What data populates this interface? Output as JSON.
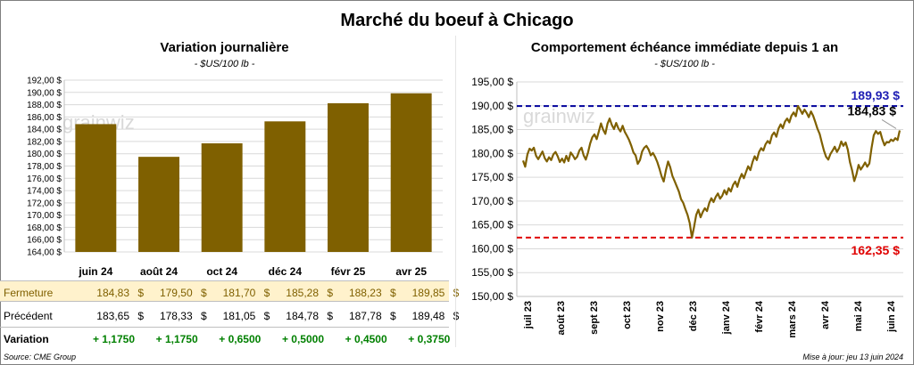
{
  "title": "Marché du boeuf à Chicago",
  "left_panel": {
    "subtitle": "Variation  journalière",
    "unit": "- $US/100 lb -"
  },
  "right_panel": {
    "subtitle": "Comportement  échéance immédiate depuis 1 an",
    "unit": "- $US/100 lb -"
  },
  "watermark": "grainwiz",
  "currency_symbol": "$",
  "table": {
    "rows": [
      {
        "label": "Fermeture",
        "values": [
          "184,83",
          "179,50",
          "181,70",
          "185,28",
          "188,23",
          "189,85"
        ]
      },
      {
        "label": "Précédent",
        "values": [
          "183,65",
          "178,33",
          "181,05",
          "184,78",
          "187,78",
          "189,48"
        ]
      },
      {
        "label": "Variation",
        "values": [
          "+ 1,1750",
          "+ 1,1750",
          "+ 0,6500",
          "+ 0,5000",
          "+ 0,4500",
          "+ 0,3750"
        ]
      }
    ]
  },
  "source": "Source: CME Group",
  "updated": "Mise à jour: jeu 13 juin 2024",
  "colors": {
    "bar": "#7f6000",
    "line": "#7f6000",
    "high_line": "#00009c",
    "low_line": "#e00000",
    "high_text": "#1f1fb4",
    "low_text": "#e00000",
    "fermeture_bg": "#fff2cc",
    "variation_text": "#008000"
  },
  "chart_data": [
    {
      "type": "bar",
      "categories": [
        "juin 24",
        "août 24",
        "oct 24",
        "déc 24",
        "févr 25",
        "avr 25"
      ],
      "values": [
        184.83,
        179.5,
        181.7,
        185.28,
        188.23,
        189.85
      ],
      "ylim": [
        164,
        192
      ],
      "ystep": 2,
      "ytick_format": "00,00 $",
      "grid": true
    },
    {
      "type": "line",
      "x_labels": [
        "juil 23",
        "août 23",
        "sept 23",
        "oct 23",
        "nov 23",
        "déc 23",
        "janv 24",
        "févr 24",
        "mars 24",
        "avr 24",
        "mai 24",
        "juin 24"
      ],
      "ylim": [
        150,
        195
      ],
      "ystep": 5,
      "ytick_format": "000,00 $",
      "grid": true,
      "high": 189.93,
      "high_label": "189,93 $",
      "low": 162.35,
      "low_label": "162,35 $",
      "last": 184.83,
      "last_label": "184,83 $",
      "values": [
        178.5,
        177.2,
        179.8,
        181.0,
        180.6,
        181.2,
        179.5,
        178.8,
        179.6,
        180.4,
        179.0,
        178.3,
        179.2,
        178.6,
        179.8,
        180.3,
        179.4,
        178.2,
        178.9,
        178.1,
        179.5,
        178.4,
        180.2,
        179.6,
        178.8,
        179.3,
        180.6,
        181.2,
        179.6,
        178.7,
        180.2,
        182.1,
        183.4,
        184.0,
        183.0,
        184.6,
        186.3,
        185.0,
        184.1,
        186.2,
        187.3,
        186.0,
        185.1,
        186.4,
        185.3,
        184.6,
        185.8,
        184.5,
        183.7,
        182.8,
        181.6,
        180.2,
        179.6,
        177.8,
        178.6,
        180.4,
        181.2,
        181.6,
        180.8,
        179.6,
        180.1,
        179.3,
        178.2,
        176.8,
        175.2,
        174.1,
        176.5,
        178.3,
        177.1,
        175.3,
        174.2,
        173.1,
        172.0,
        170.4,
        169.6,
        168.3,
        167.1,
        165.4,
        162.35,
        164.6,
        167.1,
        168.2,
        166.6,
        167.7,
        168.5,
        167.9,
        169.6,
        170.6,
        169.8,
        170.9,
        171.6,
        170.5,
        171.1,
        172.3,
        171.4,
        172.7,
        172.0,
        173.4,
        174.1,
        173.0,
        174.6,
        175.7,
        174.8,
        176.1,
        177.3,
        176.5,
        178.2,
        179.4,
        178.6,
        180.3,
        181.1,
        180.6,
        181.9,
        182.6,
        182.1,
        183.8,
        184.4,
        183.5,
        185.2,
        186.1,
        185.3,
        186.7,
        187.3,
        186.5,
        187.9,
        188.6,
        187.8,
        189.93,
        189.2,
        188.3,
        189.2,
        188.5,
        187.6,
        188.8,
        187.9,
        186.6,
        185.2,
        184.1,
        182.3,
        180.6,
        179.3,
        178.7,
        179.9,
        180.6,
        181.4,
        180.3,
        181.1,
        182.5,
        181.6,
        182.3,
        180.8,
        178.2,
        176.5,
        174.2,
        175.6,
        177.6,
        176.6,
        177.3,
        178.1,
        177.2,
        177.9,
        181.2,
        183.8,
        184.7,
        184.1,
        184.5,
        182.9,
        181.7,
        182.4,
        182.3,
        182.9,
        182.6,
        183.2,
        182.8,
        184.83
      ]
    }
  ]
}
